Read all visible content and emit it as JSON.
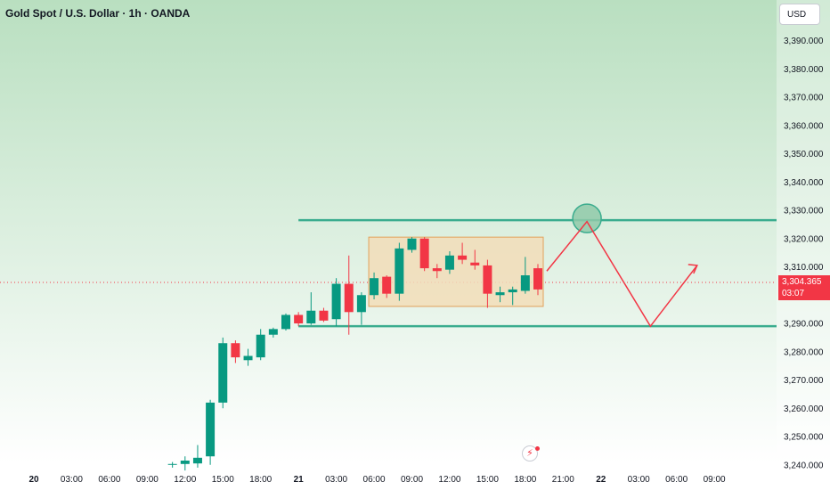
{
  "header": {
    "symbol_title": "Gold Spot / U.S. Dollar · 1h · OANDA",
    "currency_button": "USD"
  },
  "price_tag": {
    "price": "3,304.365",
    "countdown": "03:07"
  },
  "colors": {
    "up": "#089981",
    "down": "#f23645",
    "levels": "#3aac8e",
    "projection": "#f23645",
    "range_box_fill": "#f2ddb8",
    "range_box_stroke": "#e2a15b"
  },
  "chart_data": {
    "type": "candlestick",
    "title": "Gold Spot / U.S. Dollar · 1h · OANDA",
    "ylim": [
      3240,
      3397
    ],
    "y_ticks": [
      "3,240.000",
      "3,250.000",
      "3,260.000",
      "3,270.000",
      "3,280.000",
      "3,290.000",
      "3,300.000",
      "3,310.000",
      "3,320.000",
      "3,330.000",
      "3,340.000",
      "3,350.000",
      "3,360.000",
      "3,370.000",
      "3,380.000",
      "3,390.000"
    ],
    "x_ticks": [
      {
        "label": "20",
        "bold": true
      },
      {
        "label": "03:00"
      },
      {
        "label": "06:00"
      },
      {
        "label": "09:00"
      },
      {
        "label": "12:00"
      },
      {
        "label": "15:00"
      },
      {
        "label": "18:00"
      },
      {
        "label": "21",
        "bold": true
      },
      {
        "label": "03:00"
      },
      {
        "label": "06:00"
      },
      {
        "label": "09:00"
      },
      {
        "label": "12:00"
      },
      {
        "label": "15:00"
      },
      {
        "label": "18:00"
      },
      {
        "label": "21:00"
      },
      {
        "label": "22",
        "bold": true
      },
      {
        "label": "03:00"
      },
      {
        "label": "06:00"
      },
      {
        "label": "09:00"
      }
    ],
    "candles": [
      {
        "o": 3240,
        "h": 3241,
        "l": 3239,
        "c": 3240.3
      },
      {
        "o": 3240.3,
        "h": 3243,
        "l": 3238,
        "c": 3241.5
      },
      {
        "o": 3240.5,
        "h": 3247,
        "l": 3239,
        "c": 3242.5
      },
      {
        "o": 3243,
        "h": 3263,
        "l": 3240,
        "c": 3262
      },
      {
        "o": 3262,
        "h": 3285,
        "l": 3260,
        "c": 3283
      },
      {
        "o": 3283,
        "h": 3284,
        "l": 3276,
        "c": 3278
      },
      {
        "o": 3277,
        "h": 3281,
        "l": 3275,
        "c": 3278.5
      },
      {
        "o": 3278,
        "h": 3288,
        "l": 3277,
        "c": 3286
      },
      {
        "o": 3286,
        "h": 3288.5,
        "l": 3285,
        "c": 3288
      },
      {
        "o": 3288,
        "h": 3293.5,
        "l": 3287.5,
        "c": 3293
      },
      {
        "o": 3293,
        "h": 3294,
        "l": 3289,
        "c": 3290
      },
      {
        "o": 3290,
        "h": 3301,
        "l": 3289.5,
        "c": 3294.5
      },
      {
        "o": 3294.5,
        "h": 3295.5,
        "l": 3290.5,
        "c": 3291
      },
      {
        "o": 3291.5,
        "h": 3306,
        "l": 3289,
        "c": 3304
      },
      {
        "o": 3304,
        "h": 3314,
        "l": 3286,
        "c": 3294
      },
      {
        "o": 3294,
        "h": 3301,
        "l": 3289.5,
        "c": 3300
      },
      {
        "o": 3300,
        "h": 3308,
        "l": 3298.5,
        "c": 3306
      },
      {
        "o": 3306.5,
        "h": 3307,
        "l": 3299,
        "c": 3300.5
      },
      {
        "o": 3300.5,
        "h": 3318.5,
        "l": 3298,
        "c": 3316.5
      },
      {
        "o": 3316,
        "h": 3320.5,
        "l": 3315,
        "c": 3320
      },
      {
        "o": 3320,
        "h": 3320.5,
        "l": 3308.5,
        "c": 3309.5
      },
      {
        "o": 3309.5,
        "h": 3311,
        "l": 3306,
        "c": 3308.5
      },
      {
        "o": 3309,
        "h": 3315.5,
        "l": 3307.5,
        "c": 3314
      },
      {
        "o": 3314,
        "h": 3318.5,
        "l": 3311,
        "c": 3312.5
      },
      {
        "o": 3311.5,
        "h": 3316,
        "l": 3309,
        "c": 3310.5
      },
      {
        "o": 3310.5,
        "h": 3312.5,
        "l": 3295.5,
        "c": 3300.5
      },
      {
        "o": 3300,
        "h": 3303,
        "l": 3297.5,
        "c": 3301
      },
      {
        "o": 3301,
        "h": 3303,
        "l": 3296.5,
        "c": 3302
      },
      {
        "o": 3301.5,
        "h": 3313.5,
        "l": 3300.5,
        "c": 3307
      },
      {
        "o": 3309.5,
        "h": 3311,
        "l": 3300,
        "c": 3302
      }
    ],
    "current_price": 3304.365,
    "drawings": {
      "resistance_level": 3326.5,
      "support_level": 3289,
      "range_box": {
        "low": 3296,
        "high": 3320.5
      },
      "projection_path": [
        3308.5,
        3326,
        3289,
        3310.5
      ]
    }
  }
}
